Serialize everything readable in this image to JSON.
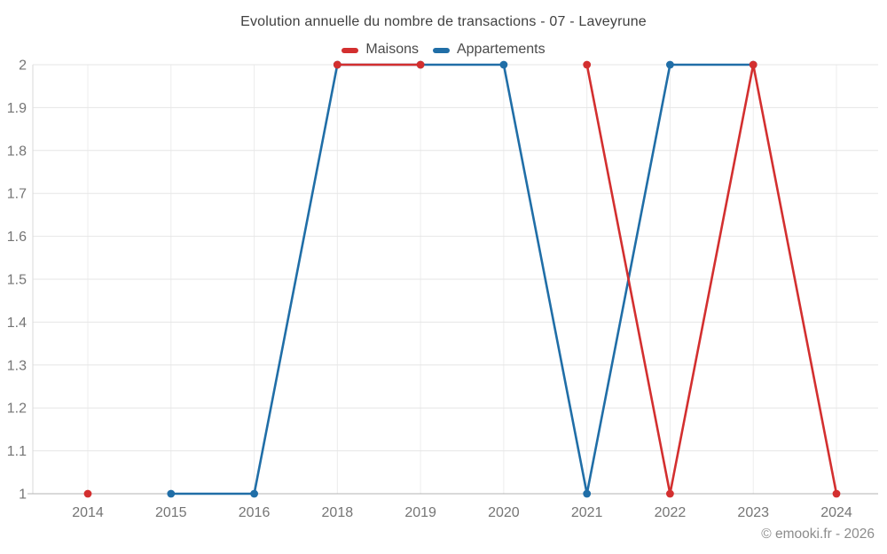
{
  "title": "Evolution annuelle du nombre de transactions - 07 - Laveyrune",
  "watermark": "© emooki.fr - 2026",
  "legend": [
    {
      "label": "Maisons",
      "color": "#d32f2f"
    },
    {
      "label": "Appartements",
      "color": "#206ea7"
    }
  ],
  "colors": {
    "series_maisons": "#d32f2f",
    "series_appartements": "#206ea7",
    "grid_horizontal": "#e6e6e6",
    "grid_vertical": "#ececec",
    "axis_bottom": "#b3b3b3",
    "axis_left": "#dadada",
    "tick_label": "#757575",
    "title_text": "#404040",
    "watermark_text": "#8c8c8c",
    "background": "#ffffff"
  },
  "chart_data": {
    "type": "line",
    "title": "Evolution annuelle du nombre de transactions - 07 - Laveyrune",
    "categories": [
      "2014",
      "2015",
      "2016",
      "2018",
      "2019",
      "2020",
      "2021",
      "2022",
      "2023",
      "2024"
    ],
    "series": [
      {
        "name": "Maisons",
        "color": "#d32f2f",
        "values": [
          1,
          null,
          null,
          2,
          2,
          null,
          2,
          1,
          2,
          1
        ]
      },
      {
        "name": "Appartements",
        "color": "#206ea7",
        "values": [
          null,
          1,
          1,
          2,
          2,
          2,
          1,
          2,
          2,
          null
        ]
      }
    ],
    "xlabel": "",
    "ylabel": "",
    "ylim": [
      1,
      2
    ],
    "yticks": [
      1,
      1.1,
      1.2,
      1.3,
      1.4,
      1.5,
      1.6,
      1.7,
      1.8,
      1.9,
      2
    ],
    "grid": true,
    "legend_position": "top",
    "gaps_note": "null = no data point for that year; 2017 absent from axis"
  }
}
